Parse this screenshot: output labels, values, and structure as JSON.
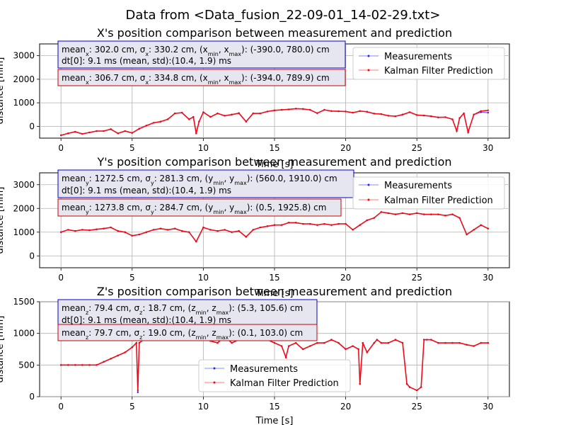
{
  "figure": {
    "suptitle": "Data from <Data_fusion_22-09-01_14-02-29.txt>"
  },
  "chart_data": [
    {
      "type": "line",
      "title": "X's position comparison between measurement and prediction",
      "xlabel": "Time [s]",
      "ylabel": "distance [mm]",
      "xlim": [
        -1.5,
        31.5
      ],
      "ylim": [
        -500,
        3500
      ],
      "xticks": [
        0,
        5,
        10,
        15,
        20,
        25,
        30
      ],
      "yticks": [
        0,
        1000,
        2000,
        3000
      ],
      "grid": true,
      "legend_position": "upper right",
      "stats_measurement": [
        "mean_x: 302.0 cm, σ_x: 330.2 cm, (x_min, x_max): (-390.0, 780.0) cm",
        "dt[0]: 9.1 ms (mean, std):(10.4, 1.9) ms"
      ],
      "stats_prediction": "mean_x: 306.7 cm, σ_x: 334.8 cm, (x_min, x_max): (-394.0, 789.9) cm",
      "series": [
        {
          "name": "Measurements",
          "color": "#1f1fff",
          "x": [
            0,
            0.5,
            1,
            1.5,
            2,
            2.5,
            3,
            3.5,
            4,
            4.5,
            5,
            5.5,
            6,
            6.5,
            7,
            7.5,
            8,
            8.5,
            9,
            9.3,
            9.5,
            9.7,
            10,
            10.5,
            11,
            11.5,
            12,
            12.5,
            13,
            13.5,
            14,
            14.5,
            15,
            15.5,
            16,
            16.5,
            17,
            17.5,
            18,
            18.5,
            19,
            19.5,
            20,
            20.5,
            21,
            21.5,
            22,
            22.5,
            23,
            23.5,
            24,
            24.5,
            25,
            25.5,
            26,
            26.5,
            27,
            27.5,
            27.8,
            28,
            28.3,
            28.6,
            29,
            29.5,
            30
          ],
          "y": [
            -380,
            -300,
            -230,
            -320,
            -260,
            -200,
            -200,
            -120,
            -300,
            -200,
            -280,
            -100,
            30,
            150,
            200,
            300,
            550,
            580,
            300,
            400,
            -300,
            200,
            600,
            400,
            550,
            450,
            500,
            560,
            200,
            550,
            550,
            630,
            680,
            700,
            720,
            750,
            740,
            700,
            560,
            700,
            650,
            640,
            630,
            580,
            650,
            620,
            540,
            520,
            450,
            430,
            500,
            600,
            480,
            460,
            430,
            380,
            390,
            300,
            -200,
            350,
            550,
            -250,
            500,
            600,
            580
          ]
        },
        {
          "name": "Kalman Filter Prediction",
          "color": "#ff0000",
          "x": [
            0,
            0.5,
            1,
            1.5,
            2,
            2.5,
            3,
            3.5,
            4,
            4.5,
            5,
            5.5,
            6,
            6.5,
            7,
            7.5,
            8,
            8.5,
            9,
            9.3,
            9.5,
            9.7,
            10,
            10.5,
            11,
            11.5,
            12,
            12.5,
            13,
            13.5,
            14,
            14.5,
            15,
            15.5,
            16,
            16.5,
            17,
            17.5,
            18,
            18.5,
            19,
            19.5,
            20,
            20.5,
            21,
            21.5,
            22,
            22.5,
            23,
            23.5,
            24,
            24.5,
            25,
            25.5,
            26,
            26.5,
            27,
            27.5,
            27.8,
            28,
            28.3,
            28.6,
            29,
            29.5,
            30
          ],
          "y": [
            -380,
            -300,
            -230,
            -320,
            -260,
            -200,
            -200,
            -120,
            -300,
            -200,
            -280,
            -100,
            30,
            150,
            200,
            300,
            550,
            580,
            300,
            400,
            -300,
            200,
            600,
            400,
            550,
            450,
            500,
            560,
            200,
            550,
            550,
            630,
            680,
            700,
            720,
            750,
            740,
            700,
            560,
            700,
            650,
            640,
            630,
            580,
            650,
            620,
            540,
            520,
            450,
            430,
            500,
            600,
            480,
            460,
            430,
            380,
            390,
            300,
            -200,
            350,
            550,
            -250,
            500,
            650,
            680
          ]
        }
      ]
    },
    {
      "type": "line",
      "title": "Y's position comparison between measurement and prediction",
      "xlabel": "Time [s]",
      "ylabel": "distance [mm]",
      "xlim": [
        -1.5,
        31.5
      ],
      "ylim": [
        -500,
        3500
      ],
      "xticks": [
        0,
        5,
        10,
        15,
        20,
        25,
        30
      ],
      "yticks": [
        0,
        1000,
        2000,
        3000
      ],
      "grid": true,
      "legend_position": "upper right",
      "stats_measurement": [
        "mean_y: 1272.5 cm, σ_y: 281.3 cm, (y_min, y_max): (560.0, 1910.0) cm",
        "dt[0]: 9.1 ms (mean, std):(10.4, 1.9) ms"
      ],
      "stats_prediction": "mean_y: 1273.8 cm, σ_y: 284.7 cm, (y_min, y_max): (0.5, 1925.8) cm",
      "series": [
        {
          "name": "Measurements",
          "color": "#1f1fff",
          "x": [
            0,
            0.5,
            1,
            1.5,
            2,
            2.5,
            3,
            3.5,
            4,
            4.5,
            5,
            5.5,
            6,
            6.5,
            7,
            7.5,
            8,
            8.5,
            9,
            9.5,
            10,
            10.5,
            11,
            11.5,
            12,
            12.5,
            13,
            13.5,
            14,
            14.5,
            15,
            15.5,
            16,
            16.5,
            17,
            17.5,
            18,
            18.5,
            19,
            19.5,
            20,
            20.5,
            21,
            21.5,
            22,
            22.5,
            23,
            23.5,
            24,
            24.5,
            25,
            25.5,
            26,
            26.5,
            27,
            27.5,
            28,
            28.5,
            29,
            29.5,
            30
          ],
          "y": [
            1000,
            1100,
            1050,
            1100,
            1080,
            1120,
            1150,
            1200,
            1050,
            1000,
            850,
            900,
            1000,
            1100,
            1150,
            1100,
            1150,
            1050,
            1000,
            600,
            1200,
            1100,
            1050,
            1100,
            1000,
            1050,
            800,
            1100,
            1200,
            1250,
            1300,
            1300,
            1400,
            1400,
            1350,
            1350,
            1300,
            1350,
            1300,
            1350,
            1350,
            1100,
            1300,
            1500,
            1600,
            1850,
            1800,
            1750,
            1800,
            1750,
            1800,
            1750,
            1750,
            1750,
            1700,
            1750,
            1600,
            900,
            1100,
            1300,
            1150
          ]
        },
        {
          "name": "Kalman Filter Prediction",
          "color": "#ff0000",
          "x": [
            0,
            0.5,
            1,
            1.5,
            2,
            2.5,
            3,
            3.5,
            4,
            4.5,
            5,
            5.5,
            6,
            6.5,
            7,
            7.5,
            8,
            8.5,
            9,
            9.5,
            10,
            10.5,
            11,
            11.5,
            12,
            12.5,
            13,
            13.5,
            14,
            14.5,
            15,
            15.5,
            16,
            16.5,
            17,
            17.5,
            18,
            18.5,
            19,
            19.5,
            20,
            20.5,
            21,
            21.5,
            22,
            22.5,
            23,
            23.5,
            24,
            24.5,
            25,
            25.5,
            26,
            26.5,
            27,
            27.5,
            28,
            28.5,
            29,
            29.5,
            30
          ],
          "y": [
            1000,
            1100,
            1050,
            1100,
            1080,
            1120,
            1150,
            1200,
            1050,
            1000,
            850,
            900,
            1000,
            1100,
            1150,
            1100,
            1150,
            1050,
            1000,
            600,
            1200,
            1100,
            1050,
            1100,
            1000,
            1050,
            800,
            1100,
            1200,
            1250,
            1300,
            1300,
            1400,
            1400,
            1350,
            1350,
            1300,
            1350,
            1300,
            1350,
            1350,
            1100,
            1300,
            1500,
            1600,
            1850,
            1800,
            1750,
            1800,
            1750,
            1800,
            1750,
            1750,
            1750,
            1700,
            1750,
            1600,
            900,
            1100,
            1300,
            1150
          ]
        }
      ]
    },
    {
      "type": "line",
      "title": "Z's position comparison between measurement and prediction",
      "xlabel": "Time [s]",
      "ylabel": "distance [mm]",
      "xlim": [
        -1.5,
        31.5
      ],
      "ylim": [
        0,
        1500
      ],
      "xticks": [
        0,
        5,
        10,
        15,
        20,
        25,
        30
      ],
      "yticks": [
        0,
        500,
        1000,
        1500
      ],
      "grid": true,
      "legend_position": "lower center",
      "stats_measurement": [
        "mean_z: 79.4 cm, σ_z: 18.7 cm, (z_min, z_max): (5.3, 105.6) cm",
        "dt[0]: 9.1 ms (mean, std):(10.4, 1.9) ms"
      ],
      "stats_prediction": "mean_z: 79.7 cm, σ_z: 19.0 cm, (z_min, z_max): (0.1, 103.0) cm",
      "series": [
        {
          "name": "Measurements",
          "color": "#1f1fff",
          "x": [
            0,
            0.5,
            1,
            1.5,
            2,
            2.5,
            3,
            3.5,
            4,
            4.5,
            5,
            5.3,
            5.4,
            5.5,
            5.8,
            6,
            6.5,
            7,
            7.5,
            8,
            8.5,
            9,
            9.5,
            10,
            10.5,
            11,
            11.5,
            12,
            12.5,
            13,
            13.5,
            14,
            14.5,
            15,
            15.5,
            15.8,
            16,
            16.5,
            17,
            17.5,
            18,
            18.5,
            19,
            19.5,
            20,
            20.5,
            20.9,
            21,
            21.2,
            21.5,
            22,
            22.2,
            22.5,
            23,
            23.5,
            24,
            24.3,
            24.5,
            25,
            25.3,
            25.5,
            25.7,
            26,
            26.5,
            27,
            27.5,
            28,
            28.5,
            29,
            29.5,
            30
          ],
          "y": [
            500,
            500,
            500,
            500,
            500,
            500,
            550,
            600,
            650,
            700,
            780,
            850,
            70,
            850,
            900,
            900,
            950,
            950,
            1000,
            980,
            1000,
            950,
            900,
            950,
            880,
            850,
            950,
            850,
            900,
            900,
            950,
            950,
            900,
            850,
            800,
            620,
            800,
            850,
            750,
            800,
            850,
            850,
            900,
            850,
            750,
            800,
            750,
            200,
            850,
            700,
            850,
            900,
            850,
            850,
            900,
            850,
            200,
            150,
            100,
            150,
            900,
            900,
            900,
            850,
            850,
            850,
            850,
            820,
            800,
            850,
            850
          ]
        },
        {
          "name": "Kalman Filter Prediction",
          "color": "#ff0000",
          "x": [
            0,
            0.5,
            1,
            1.5,
            2,
            2.5,
            3,
            3.5,
            4,
            4.5,
            5,
            5.3,
            5.4,
            5.5,
            5.8,
            6,
            6.5,
            7,
            7.5,
            8,
            8.5,
            9,
            9.5,
            10,
            10.5,
            11,
            11.5,
            12,
            12.5,
            13,
            13.5,
            14,
            14.5,
            15,
            15.5,
            15.8,
            16,
            16.5,
            17,
            17.5,
            18,
            18.5,
            19,
            19.5,
            20,
            20.5,
            20.9,
            21,
            21.2,
            21.5,
            22,
            22.2,
            22.5,
            23,
            23.5,
            24,
            24.3,
            24.5,
            25,
            25.3,
            25.5,
            25.7,
            26,
            26.5,
            27,
            27.5,
            28,
            28.5,
            29,
            29.5,
            30
          ],
          "y": [
            500,
            500,
            500,
            500,
            500,
            500,
            550,
            600,
            650,
            700,
            780,
            850,
            100,
            850,
            900,
            900,
            950,
            950,
            1000,
            980,
            1000,
            950,
            900,
            950,
            880,
            850,
            950,
            850,
            900,
            900,
            950,
            950,
            900,
            850,
            800,
            620,
            800,
            850,
            750,
            800,
            850,
            850,
            900,
            850,
            750,
            800,
            750,
            200,
            850,
            700,
            850,
            900,
            850,
            850,
            900,
            850,
            200,
            150,
            100,
            150,
            900,
            900,
            900,
            850,
            850,
            850,
            850,
            820,
            800,
            850,
            850
          ]
        }
      ]
    }
  ]
}
